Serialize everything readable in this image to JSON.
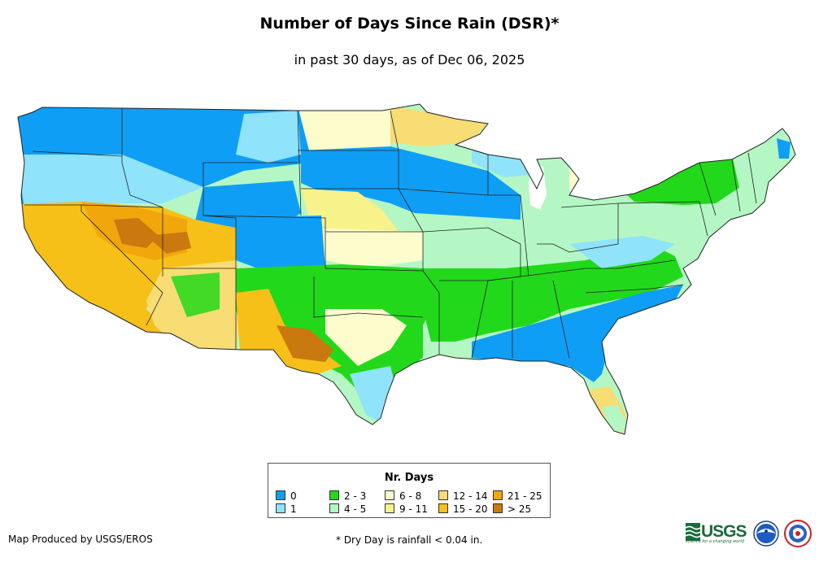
{
  "title": "Number of Days Since Rain (DSR)*",
  "subtitle": "in past 30 days, as of Dec 06, 2025",
  "legend": {
    "title": "Nr. Days",
    "items": [
      {
        "label": "0",
        "color": "#0f9ef5"
      },
      {
        "label": "1",
        "color": "#8fe3fa"
      },
      {
        "label": "2 - 3",
        "color": "#22d81a"
      },
      {
        "label": "4 - 5",
        "color": "#b4f7c4"
      },
      {
        "label": "6 - 8",
        "color": "#fdfccc"
      },
      {
        "label": "9 - 11",
        "color": "#f7f28a"
      },
      {
        "label": "12 - 14",
        "color": "#f8dc74"
      },
      {
        "label": "15 - 20",
        "color": "#f6c018"
      },
      {
        "label": "21 - 25",
        "color": "#f1a70b"
      },
      {
        "label": "> 25",
        "color": "#c9790e"
      }
    ]
  },
  "footer": {
    "credit": "Map Produced by USGS/EROS",
    "note": "* Dry Day is rainfall < 0.04 in."
  },
  "logos": {
    "usgs": "USGS",
    "usgs_tagline": "science for a changing world",
    "noaa": "NOAA",
    "nws": "NATIONAL WEATHER SERVICE"
  },
  "map": {
    "name": "contiguous-united-states",
    "border_color": "#222222"
  }
}
